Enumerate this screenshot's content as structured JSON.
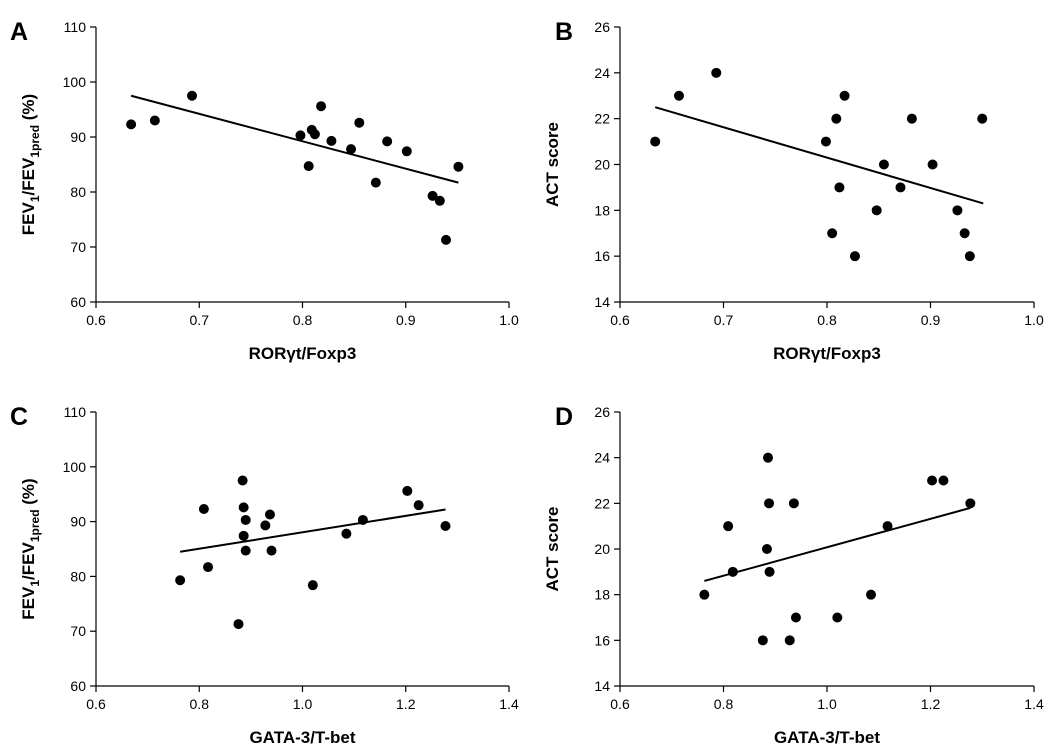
{
  "chart_data": [
    {
      "type": "scatter",
      "panel": "A",
      "xlabel": "RORγt/Foxp3",
      "ylabel": {
        "base": "FEV",
        "sub1": "1",
        "mid": "/FEV",
        "sub2": "1pred",
        "tail": " (%)"
      },
      "xlim": [
        0.6,
        1.0
      ],
      "ylim": [
        60,
        110
      ],
      "xticks": [
        "0.6",
        "0.7",
        "0.8",
        "0.9",
        "1.0"
      ],
      "yticks": [
        "60",
        "70",
        "80",
        "90",
        "100",
        "110"
      ],
      "points": [
        [
          0.634,
          92.3
        ],
        [
          0.657,
          93.0
        ],
        [
          0.693,
          97.5
        ],
        [
          0.798,
          90.3
        ],
        [
          0.806,
          84.7
        ],
        [
          0.809,
          91.3
        ],
        [
          0.812,
          90.5
        ],
        [
          0.818,
          95.6
        ],
        [
          0.828,
          89.3
        ],
        [
          0.847,
          87.8
        ],
        [
          0.855,
          92.6
        ],
        [
          0.871,
          81.7
        ],
        [
          0.882,
          89.2
        ],
        [
          0.901,
          87.4
        ],
        [
          0.926,
          79.3
        ],
        [
          0.933,
          78.4
        ],
        [
          0.939,
          71.3
        ],
        [
          0.951,
          84.6
        ]
      ],
      "trendline": [
        [
          0.634,
          97.5
        ],
        [
          0.951,
          81.7
        ]
      ]
    },
    {
      "type": "scatter",
      "panel": "B",
      "xlabel": "RORγt/Foxp3",
      "ylabel": "ACT score",
      "xlim": [
        0.6,
        1.0
      ],
      "ylim": [
        14,
        26
      ],
      "xticks": [
        "0.6",
        "0.7",
        "0.8",
        "0.9",
        "1.0"
      ],
      "yticks": [
        "14",
        "16",
        "18",
        "20",
        "22",
        "24",
        "26"
      ],
      "points": [
        [
          0.634,
          21
        ],
        [
          0.657,
          23
        ],
        [
          0.693,
          24
        ],
        [
          0.799,
          21
        ],
        [
          0.805,
          17
        ],
        [
          0.809,
          22
        ],
        [
          0.812,
          19
        ],
        [
          0.817,
          23
        ],
        [
          0.827,
          16
        ],
        [
          0.848,
          18
        ],
        [
          0.855,
          20
        ],
        [
          0.871,
          19
        ],
        [
          0.882,
          22
        ],
        [
          0.902,
          20
        ],
        [
          0.926,
          18
        ],
        [
          0.933,
          17
        ],
        [
          0.938,
          16
        ],
        [
          0.95,
          22
        ]
      ],
      "trendline": [
        [
          0.634,
          22.5
        ],
        [
          0.951,
          18.3
        ]
      ]
    },
    {
      "type": "scatter",
      "panel": "C",
      "xlabel": "GATA-3/T-bet",
      "ylabel": {
        "base": "FEV",
        "sub1": "1",
        "mid": "/FEV",
        "sub2": "1pred",
        "tail": " (%)"
      },
      "xlim": [
        0.6,
        1.4
      ],
      "ylim": [
        60,
        110
      ],
      "xticks": [
        "0.6",
        "0.8",
        "1.0",
        "1.2",
        "1.4"
      ],
      "yticks": [
        "60",
        "70",
        "80",
        "90",
        "100",
        "110"
      ],
      "points": [
        [
          0.763,
          79.3
        ],
        [
          0.809,
          92.3
        ],
        [
          0.817,
          81.7
        ],
        [
          0.876,
          71.3
        ],
        [
          0.884,
          97.5
        ],
        [
          0.886,
          92.6
        ],
        [
          0.886,
          87.4
        ],
        [
          0.89,
          84.7
        ],
        [
          0.89,
          90.3
        ],
        [
          0.928,
          89.3
        ],
        [
          0.937,
          91.3
        ],
        [
          0.94,
          84.7
        ],
        [
          1.02,
          78.4
        ],
        [
          1.085,
          87.8
        ],
        [
          1.117,
          90.3
        ],
        [
          1.203,
          95.6
        ],
        [
          1.225,
          93.0
        ],
        [
          1.277,
          89.2
        ]
      ],
      "trendline": [
        [
          0.763,
          84.5
        ],
        [
          1.277,
          92.2
        ]
      ]
    },
    {
      "type": "scatter",
      "panel": "D",
      "xlabel": "GATA-3/T-bet",
      "ylabel": "ACT score",
      "xlim": [
        0.6,
        1.4
      ],
      "ylim": [
        14,
        26
      ],
      "xticks": [
        "0.6",
        "0.8",
        "1.0",
        "1.2",
        "1.4"
      ],
      "yticks": [
        "14",
        "16",
        "18",
        "20",
        "22",
        "24",
        "26"
      ],
      "points": [
        [
          0.763,
          18
        ],
        [
          0.809,
          21
        ],
        [
          0.818,
          19
        ],
        [
          0.876,
          16
        ],
        [
          0.884,
          20
        ],
        [
          0.886,
          24
        ],
        [
          0.888,
          22
        ],
        [
          0.889,
          19
        ],
        [
          0.928,
          16
        ],
        [
          0.936,
          22
        ],
        [
          0.94,
          17
        ],
        [
          1.02,
          17
        ],
        [
          1.085,
          18
        ],
        [
          1.117,
          21
        ],
        [
          1.203,
          23
        ],
        [
          1.225,
          23
        ],
        [
          1.277,
          22
        ]
      ],
      "trendline": [
        [
          0.763,
          18.6
        ],
        [
          1.277,
          21.8
        ]
      ]
    }
  ]
}
